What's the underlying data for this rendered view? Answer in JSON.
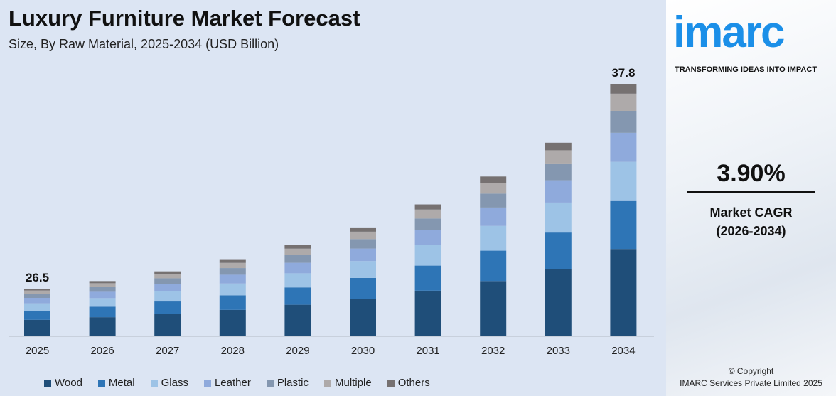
{
  "chart_data": {
    "type": "bar",
    "stacked": true,
    "title": "Luxury Furniture Market Forecast",
    "subtitle": "Size, By Raw Material, 2025-2034 (USD Billion)",
    "categories": [
      "2025",
      "2026",
      "2027",
      "2028",
      "2029",
      "2030",
      "2031",
      "2032",
      "2033",
      "2034"
    ],
    "totals": [
      26.5,
      27.5,
      28.6,
      29.7,
      30.9,
      32.1,
      33.4,
      34.7,
      36.0,
      37.8
    ],
    "total_labels": {
      "2025": "26.5",
      "2034": "37.8"
    },
    "series": [
      {
        "name": "Wood",
        "color": "#1f4e79",
        "share": 0.346
      },
      {
        "name": "Metal",
        "color": "#2e75b6",
        "share": 0.19
      },
      {
        "name": "Glass",
        "color": "#9dc3e6",
        "share": 0.155
      },
      {
        "name": "Leather",
        "color": "#8faadc",
        "share": 0.115
      },
      {
        "name": "Plastic",
        "color": "#8497b0",
        "share": 0.087
      },
      {
        "name": "Multiple",
        "color": "#aeaaaa",
        "share": 0.068
      },
      {
        "name": "Others",
        "color": "#767171",
        "share": 0.039
      }
    ],
    "grid": false,
    "legend": "bottom"
  },
  "side": {
    "logo": "imarc",
    "tagline": "TRANSFORMING IDEAS INTO IMPACT",
    "cagr": "3.90%",
    "cagr_label": "Market CAGR",
    "cagr_period": "(2026-2034)",
    "copyright": "© Copyright",
    "company": "IMARC Services Private Limited 2025"
  }
}
